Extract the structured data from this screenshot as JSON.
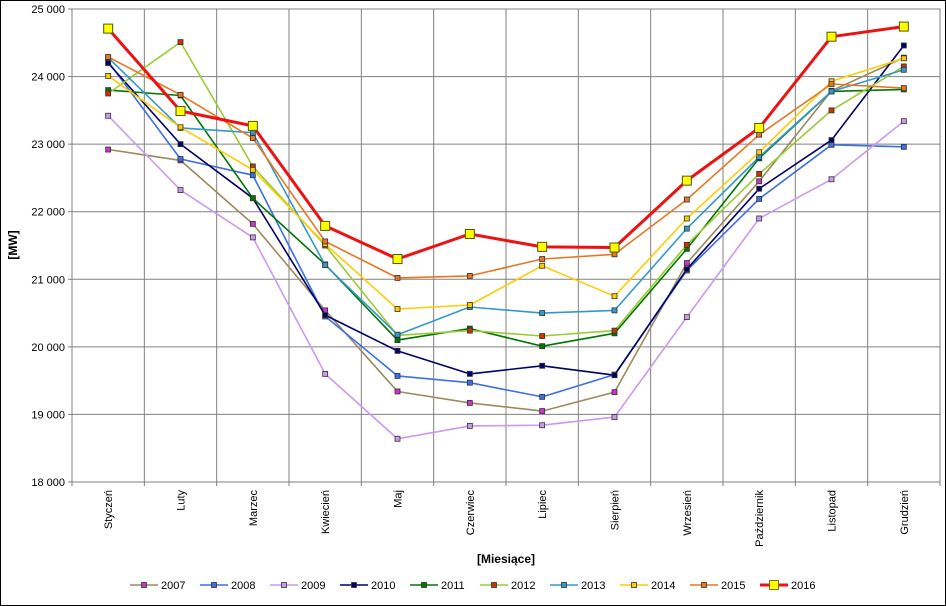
{
  "chart_data": {
    "type": "line",
    "title": "",
    "xlabel": "[Miesiące]",
    "ylabel": "[MW]",
    "ylim": [
      18000,
      25000
    ],
    "yticks": [
      18000,
      19000,
      20000,
      21000,
      22000,
      23000,
      24000,
      25000
    ],
    "ytick_labels": [
      "18 000",
      "19 000",
      "20 000",
      "21 000",
      "22 000",
      "23 000",
      "24 000",
      "25 000"
    ],
    "grid": true,
    "legend_position": "bottom",
    "categories": [
      "Styczeń",
      "Luty",
      "Marzec",
      "Kwiecień",
      "Maj",
      "Czerwiec",
      "Lipiec",
      "Sierpień",
      "Wrzesień",
      "Październik",
      "Listopad",
      "Grudzień"
    ],
    "series": [
      {
        "name": "2007",
        "color": "#9c8a5c",
        "marker": "#cc33cc",
        "values": [
          22920,
          22760,
          21820,
          20540,
          19340,
          19170,
          19050,
          19330,
          21240,
          22450,
          23790,
          24280
        ]
      },
      {
        "name": "2008",
        "color": "#3b6ee8",
        "marker": "#3b6ee8",
        "values": [
          24220,
          22780,
          22540,
          20450,
          19570,
          19470,
          19260,
          19590,
          21130,
          22190,
          22990,
          22960
        ]
      },
      {
        "name": "2009",
        "color": "#cc99ee",
        "marker": "#cc99ee",
        "values": [
          23420,
          22320,
          21620,
          19600,
          18640,
          18830,
          18840,
          18960,
          20440,
          21900,
          22480,
          23340
        ]
      },
      {
        "name": "2010",
        "color": "#000066",
        "marker": "#000066",
        "values": [
          24200,
          23000,
          22200,
          20470,
          19940,
          19600,
          19720,
          19580,
          21150,
          22340,
          23060,
          24460
        ]
      },
      {
        "name": "2011",
        "color": "#007700",
        "marker": "#007700",
        "values": [
          23800,
          23720,
          22200,
          21220,
          20100,
          20270,
          20010,
          20200,
          21450,
          22790,
          23780,
          23810
        ]
      },
      {
        "name": "2012",
        "color": "#99cc33",
        "marker": "#cc3300",
        "values": [
          23750,
          24510,
          22670,
          21500,
          20170,
          20240,
          20160,
          20240,
          21510,
          22560,
          23500,
          24150
        ]
      },
      {
        "name": "2013",
        "color": "#3399cc",
        "marker": "#3399cc",
        "values": [
          24280,
          23240,
          23170,
          21210,
          20180,
          20590,
          20500,
          20540,
          21750,
          22810,
          23780,
          24100
        ]
      },
      {
        "name": "2014",
        "color": "#ffcc00",
        "marker": "#ffcc00",
        "values": [
          24010,
          23250,
          22620,
          21520,
          20560,
          20620,
          21200,
          20750,
          21900,
          22880,
          23930,
          24270
        ]
      },
      {
        "name": "2015",
        "color": "#e87722",
        "marker": "#e87722",
        "values": [
          24290,
          23730,
          23090,
          21560,
          21020,
          21050,
          21300,
          21370,
          22180,
          23140,
          23890,
          23830
        ]
      },
      {
        "name": "2016",
        "color": "#ee1111",
        "marker": "#ffff00",
        "values": [
          24710,
          23490,
          23270,
          21790,
          21300,
          21670,
          21480,
          21470,
          22460,
          23240,
          24590,
          24740
        ]
      }
    ]
  }
}
